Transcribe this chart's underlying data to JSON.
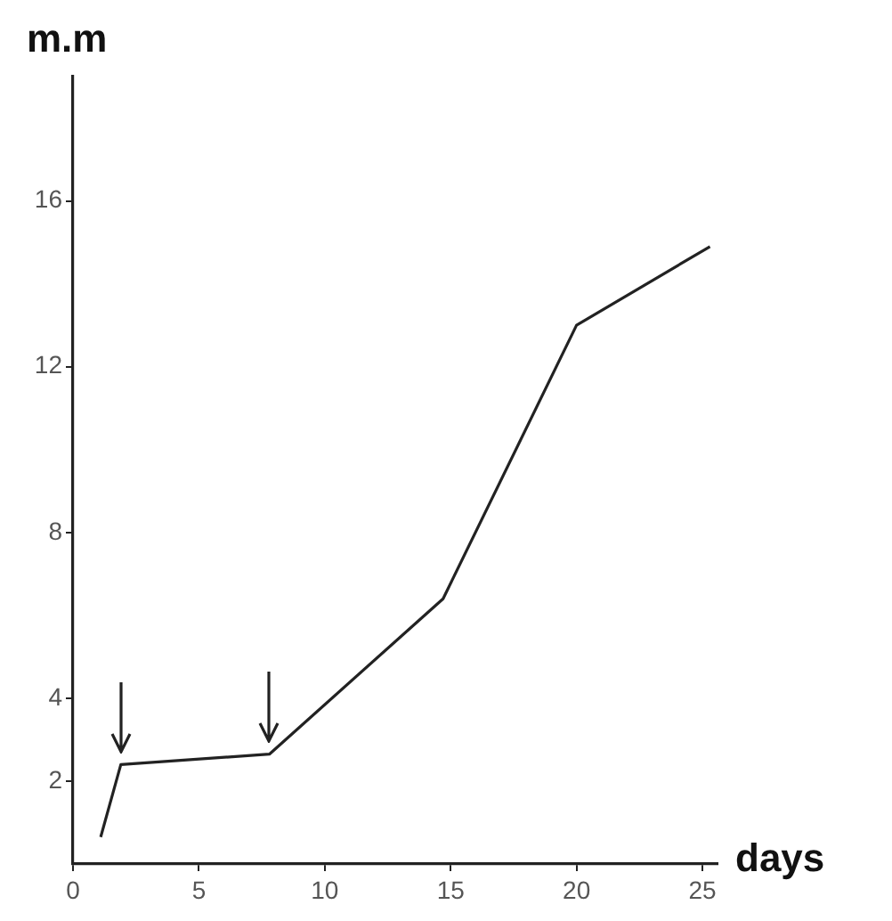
{
  "chart_data": {
    "type": "line",
    "xlabel": "days",
    "ylabel": "m.m",
    "x": [
      1.1,
      1.9,
      7.8,
      14.7,
      20,
      25.3
    ],
    "series": [
      {
        "color": "#222222",
        "values": [
          0.65,
          2.4,
          2.65,
          6.4,
          13.0,
          14.9
        ]
      }
    ],
    "xlim": [
      0,
      25.6
    ],
    "ylim": [
      0,
      19
    ],
    "xticks": [
      0,
      5,
      10,
      15,
      20,
      25
    ],
    "yticks": [
      2,
      4,
      8,
      12,
      16
    ],
    "grid": false,
    "legend": false,
    "marker": "none",
    "line_style": "solid"
  }
}
